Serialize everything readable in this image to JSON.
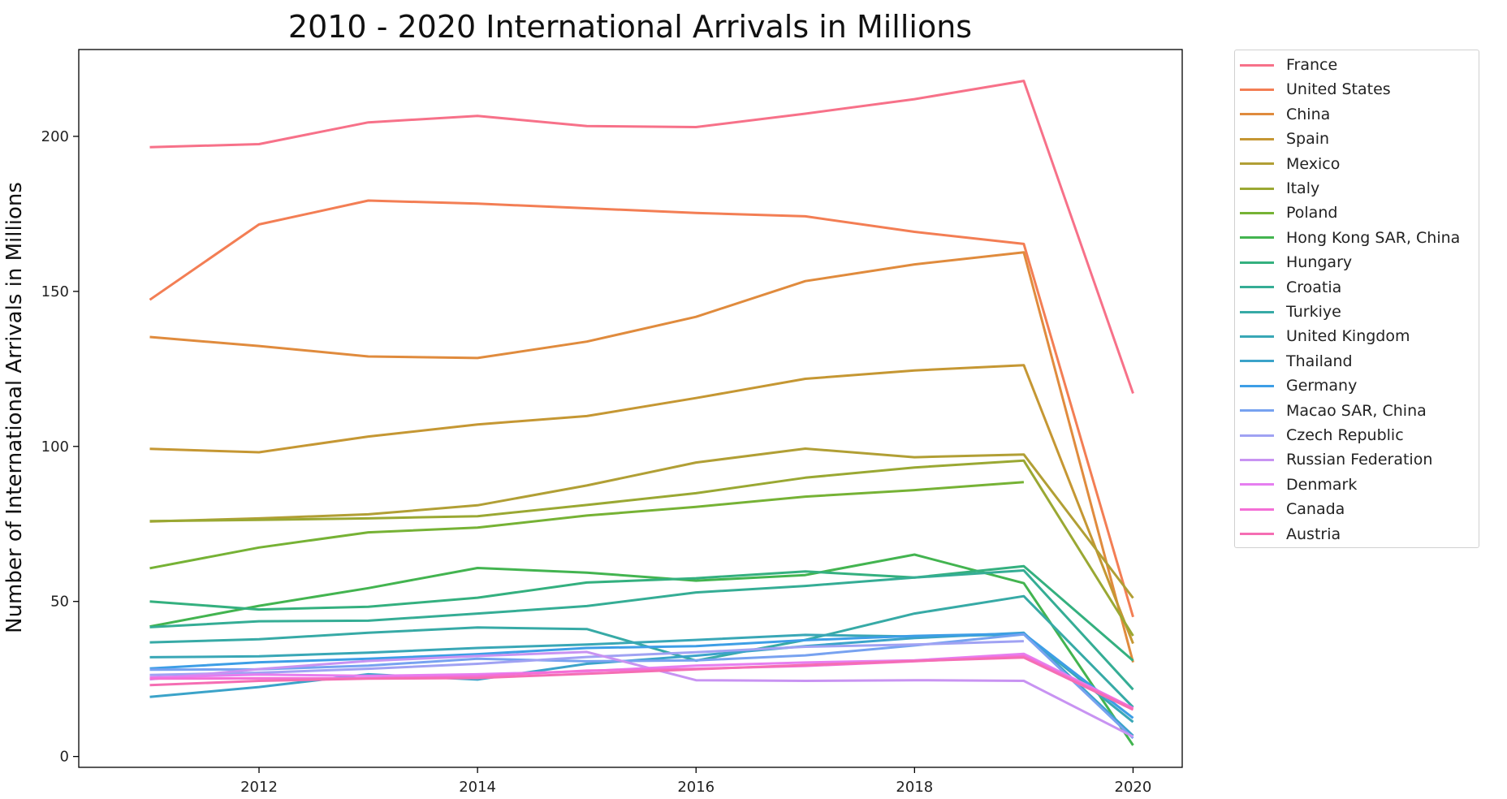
{
  "chart_data": {
    "type": "line",
    "title": "2010 - 2020 International Arrivals in Millions",
    "xlabel": "",
    "ylabel": "Number of International Arrivals in Millions",
    "x": [
      2011,
      2012,
      2013,
      2014,
      2015,
      2016,
      2017,
      2018,
      2019,
      2020
    ],
    "xlim": [
      2010.35,
      2020.45
    ],
    "ylim": [
      -3.5,
      228
    ],
    "xticks": [
      2012,
      2014,
      2016,
      2018,
      2020
    ],
    "yticks": [
      0,
      50,
      100,
      150,
      200
    ],
    "legend_position": "outside-right",
    "grid": false,
    "series": [
      {
        "name": "France",
        "color": "#f77189",
        "values": [
          196.5,
          197.5,
          204.5,
          206.6,
          203.3,
          203.0,
          207.3,
          212.0,
          217.9,
          117.1
        ]
      },
      {
        "name": "United States",
        "color": "#f37e54",
        "values": [
          147.3,
          171.6,
          179.3,
          178.3,
          176.8,
          175.3,
          174.2,
          169.2,
          165.3,
          45.0
        ]
      },
      {
        "name": "China",
        "color": "#e08b3d",
        "values": [
          135.3,
          132.4,
          129.0,
          128.5,
          133.8,
          141.8,
          153.3,
          158.7,
          162.6,
          30.4
        ]
      },
      {
        "name": "Spain",
        "color": "#c59733",
        "values": [
          99.2,
          98.1,
          103.2,
          107.1,
          109.8,
          115.6,
          121.8,
          124.5,
          126.2,
          36.4
        ]
      },
      {
        "name": "Mexico",
        "color": "#b19f35",
        "values": [
          75.8,
          76.8,
          78.1,
          81.0,
          87.4,
          94.8,
          99.3,
          96.5,
          97.4,
          51.1
        ]
      },
      {
        "name": "Italy",
        "color": "#9aa833",
        "values": [
          75.9,
          76.3,
          76.8,
          77.5,
          81.1,
          84.9,
          89.9,
          93.2,
          95.4,
          38.9
        ]
      },
      {
        "name": "Poland",
        "color": "#76b235",
        "values": [
          60.7,
          67.4,
          72.3,
          73.8,
          77.7,
          80.5,
          83.8,
          85.9,
          88.5,
          null
        ]
      },
      {
        "name": "Hong Kong SAR, China",
        "color": "#43b450",
        "values": [
          41.9,
          48.6,
          54.3,
          60.8,
          59.3,
          56.7,
          58.5,
          65.1,
          55.9,
          3.6
        ]
      },
      {
        "name": "Hungary",
        "color": "#34b07f",
        "values": [
          50.0,
          47.4,
          48.3,
          51.2,
          56.1,
          57.5,
          59.7,
          57.7,
          61.4,
          30.9
        ]
      },
      {
        "name": "Croatia",
        "color": "#35ad95",
        "values": [
          41.7,
          43.6,
          43.8,
          46.1,
          48.5,
          52.9,
          55.0,
          57.7,
          60.0,
          21.6
        ]
      },
      {
        "name": "Turkiye",
        "color": "#37aaa6",
        "values": [
          36.8,
          37.8,
          39.9,
          41.6,
          41.1,
          30.9,
          37.6,
          46.1,
          51.7,
          15.9
        ]
      },
      {
        "name": "United Kingdom",
        "color": "#39a7b6",
        "values": [
          32.0,
          32.3,
          33.5,
          35.0,
          36.1,
          37.6,
          39.2,
          38.7,
          39.4,
          11.1
        ]
      },
      {
        "name": "Thailand",
        "color": "#3ba3c9",
        "values": [
          19.2,
          22.4,
          26.5,
          24.8,
          29.9,
          32.5,
          35.6,
          38.2,
          39.9,
          6.7
        ]
      },
      {
        "name": "Germany",
        "color": "#3d9ee6",
        "values": [
          28.4,
          30.4,
          31.5,
          33.0,
          35.0,
          35.6,
          37.5,
          38.9,
          39.6,
          12.4
        ]
      },
      {
        "name": "Macao SAR, China",
        "color": "#77a2f0",
        "values": [
          28.0,
          28.1,
          29.3,
          31.5,
          30.7,
          31.0,
          32.6,
          35.8,
          39.4,
          5.9
        ]
      },
      {
        "name": "Czech Republic",
        "color": "#a0a2f3",
        "values": [
          26.3,
          27.0,
          28.3,
          29.9,
          32.1,
          33.6,
          35.4,
          36.1,
          37.2,
          null
        ]
      },
      {
        "name": "Russian Federation",
        "color": "#c893f2",
        "values": [
          24.9,
          28.2,
          30.8,
          32.4,
          33.7,
          24.6,
          24.4,
          24.6,
          24.4,
          6.4
        ]
      },
      {
        "name": "Denmark",
        "color": "#e67ef0",
        "values": [
          25.5,
          26.4,
          26.0,
          26.5,
          27.5,
          29.3,
          30.3,
          31.0,
          33.1,
          15.6
        ]
      },
      {
        "name": "Canada",
        "color": "#f46fd6",
        "values": [
          25.1,
          25.2,
          25.2,
          25.9,
          27.7,
          28.3,
          29.2,
          30.7,
          32.4,
          15.5
        ]
      },
      {
        "name": "Austria",
        "color": "#f56eb3",
        "values": [
          23.0,
          24.4,
          25.1,
          25.3,
          26.7,
          28.1,
          29.5,
          30.8,
          31.9,
          15.1
        ]
      }
    ]
  }
}
